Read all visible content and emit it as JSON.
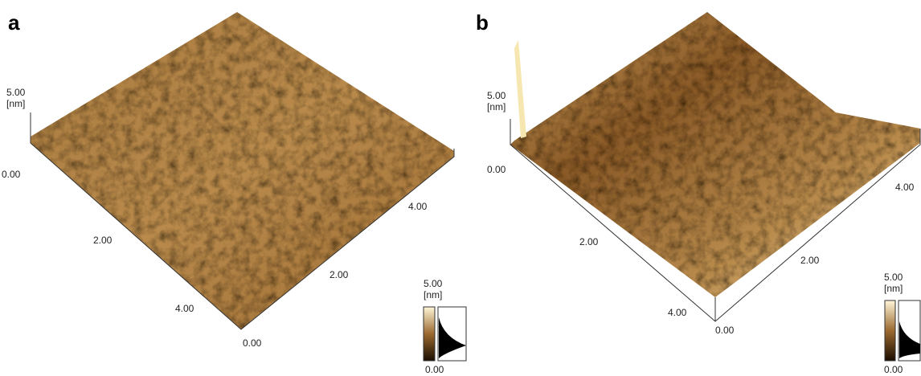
{
  "panels": [
    {
      "label": "a",
      "z_axis": {
        "max": "5.00",
        "unit": "[nm]",
        "min": "0.00"
      },
      "left_axis": [
        "2.00",
        "4.00"
      ],
      "right_axis": [
        "0.00",
        "2.00",
        "4.00"
      ],
      "colorbar": {
        "max": "5.00",
        "unit": "[nm]",
        "min": "0.00"
      }
    },
    {
      "label": "b",
      "z_axis": {
        "max": "5.00",
        "unit": "[nm]",
        "min": "0.00"
      },
      "left_axis": [
        "2.00",
        "4.00"
      ],
      "right_axis": [
        "0.00",
        "2.00",
        "4.00"
      ],
      "colorbar": {
        "max": "5.00",
        "unit": "[nm]",
        "min": "0.00"
      }
    }
  ]
}
